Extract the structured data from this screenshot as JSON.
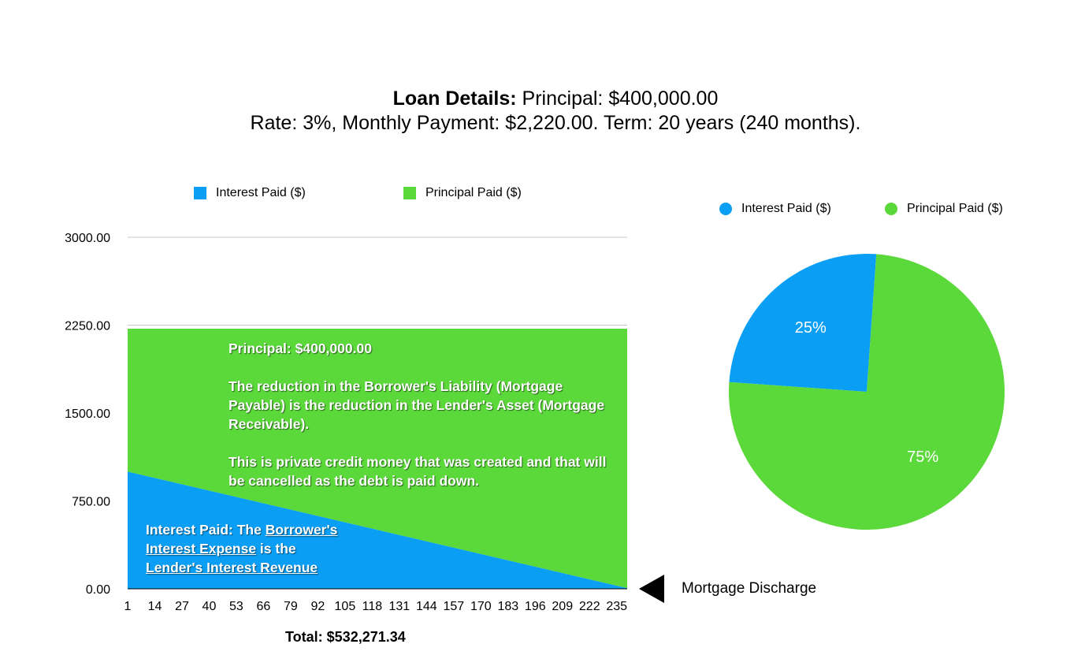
{
  "title": {
    "bold_label": "Loan Details:",
    "line1_rest": " Principal: $400,000.00",
    "line2": "Rate: 3%, Monthly Payment: $2,220.00. Term: 20 years (240 months)."
  },
  "colors": {
    "interest": "#0a9ff5",
    "principal": "#5bd83a",
    "grid": "#c8c8c8"
  },
  "area_legend": {
    "interest": "Interest Paid ($)",
    "principal": "Principal Paid ($)"
  },
  "pie_legend": {
    "interest": "Interest Paid ($)",
    "principal": "Principal Paid ($)"
  },
  "principal_note": {
    "heading": "Principal: $400,000.00",
    "para1": "The reduction in the Borrower's Liability (Mortgage Payable) is the reduction in the Lender's Asset (Mortgage Receivable).",
    "para2": "This is private credit money that was created and that will be cancelled as the debt is paid down."
  },
  "interest_note": {
    "prefix": "Interest Paid: The ",
    "link1": "Borrower's Interest Expense",
    "middle": " is the",
    "link2": "Lender's Interest Revenue"
  },
  "total_label": "Total: $532,271.34",
  "discharge_label": "Mortgage Discharge",
  "chart_data": [
    {
      "type": "area",
      "stacked": true,
      "x_ticks": [
        1,
        14,
        27,
        40,
        53,
        66,
        79,
        92,
        105,
        118,
        131,
        144,
        157,
        170,
        183,
        196,
        209,
        222,
        235
      ],
      "x_range": [
        1,
        240
      ],
      "y_ticks": [
        "3000.00",
        "2250.00",
        "1500.00",
        "750.00",
        "0.00"
      ],
      "ylim": [
        0,
        3000
      ],
      "series": [
        {
          "name": "Interest Paid ($)",
          "x": [
            1,
            240
          ],
          "values": [
            1000,
            5.5
          ]
        },
        {
          "name": "Principal Paid ($)",
          "x": [
            1,
            240
          ],
          "values": [
            1220,
            2214.5
          ]
        }
      ],
      "monthly_payment": 2220,
      "legend_position": "top"
    },
    {
      "type": "pie",
      "slices": [
        {
          "label": "Interest Paid ($)",
          "value": 25,
          "text": "25%"
        },
        {
          "label": "Principal Paid ($)",
          "value": 75,
          "text": "75%"
        }
      ],
      "legend_position": "top"
    }
  ]
}
